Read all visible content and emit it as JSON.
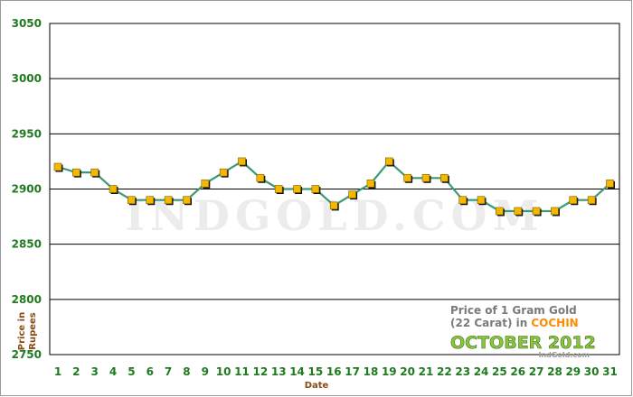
{
  "chart_data": {
    "type": "line",
    "title_line1": "Price of 1 Gram Gold",
    "title_line2_prefix": "(22 Carat) in",
    "city": "COCHIN",
    "month_label": "OCTOBER 2012",
    "watermark": "INDGOLD.COM",
    "credit": "IndGold.com",
    "xlabel": "Date",
    "ylabel_line1": "Price in",
    "ylabel_line2": "Rupees",
    "ylim": [
      2750,
      3050
    ],
    "yticks": [
      2750,
      2800,
      2850,
      2900,
      2950,
      3000,
      3050
    ],
    "grid": true,
    "x": [
      1,
      2,
      3,
      4,
      5,
      6,
      7,
      8,
      9,
      10,
      11,
      12,
      13,
      14,
      15,
      16,
      17,
      18,
      19,
      20,
      21,
      22,
      23,
      24,
      25,
      26,
      27,
      28,
      29,
      30,
      31
    ],
    "series": [
      {
        "values": [
          2920,
          2915,
          2915,
          2900,
          2890,
          2890,
          2890,
          2890,
          2905,
          2915,
          2925,
          2910,
          2900,
          2900,
          2900,
          2885,
          2895,
          2905,
          2925,
          2910,
          2910,
          2910,
          2890,
          2890,
          2880,
          2880,
          2880,
          2880,
          2890,
          2890,
          2905
        ],
        "line_color": "#3a9a74",
        "marker_color": "#f5b800"
      }
    ]
  }
}
